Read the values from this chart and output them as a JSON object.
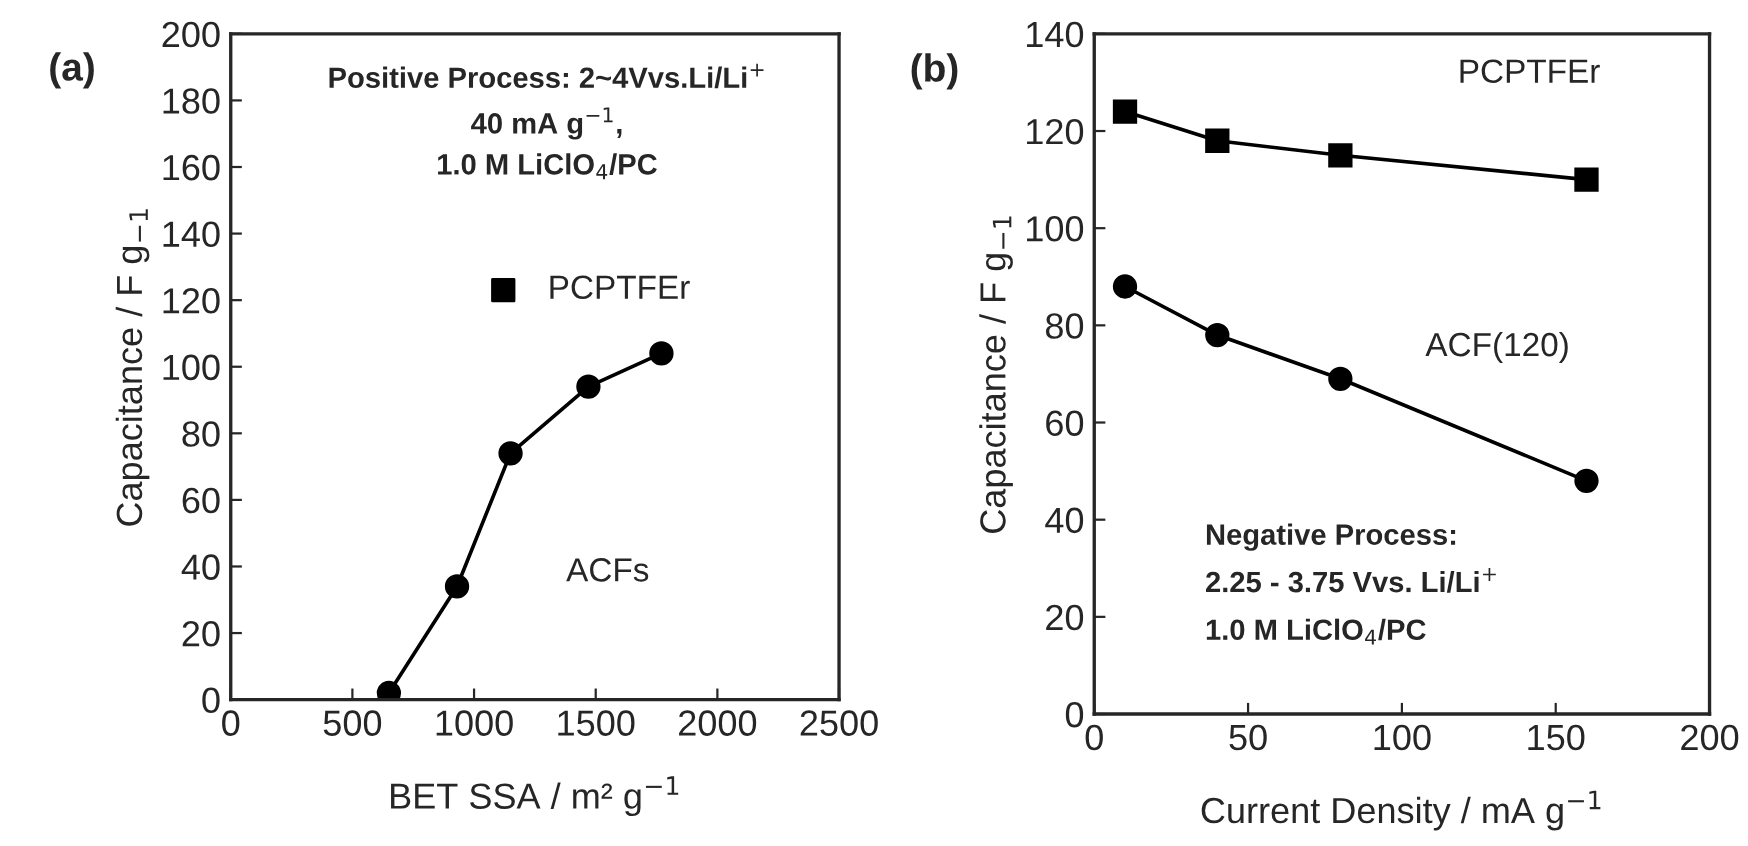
{
  "chart_data": [
    {
      "type": "line",
      "title": "(a)",
      "xlabel": "BET SSA / m² g$^{−1}$",
      "ylabel": "Capacitance / F g$_{−1}$",
      "xlim": [
        0,
        2500
      ],
      "ylim": [
        0,
        200
      ],
      "xticks": [
        0,
        500,
        1000,
        1500,
        2000,
        2500
      ],
      "yticks": [
        0,
        20,
        40,
        60,
        80,
        100,
        120,
        140,
        160,
        180,
        200
      ],
      "grid": false,
      "legend": false,
      "annotations": [
        "Positive Process: 2~4Vvs.Li/Li$^{+}$",
        "40 mA g$^{−1}$,",
        "1.0 M LiClO$_{4}$/PC"
      ],
      "series": [
        {
          "name": "PCPTFEr",
          "type": "scatter",
          "marker": "square",
          "color": "#000000",
          "x": [
            1120
          ],
          "values": [
            123
          ]
        },
        {
          "name": "ACFs",
          "marker": "circle",
          "color": "#000000",
          "x": [
            650,
            930,
            1150,
            1470,
            1770
          ],
          "values": [
            2,
            34,
            74,
            94,
            104
          ]
        }
      ]
    },
    {
      "type": "line",
      "title": "(b)",
      "xlabel": "Current Density / mA g$^{−1}$",
      "ylabel": "Capacitance / F g$_{−1}$",
      "xlim": [
        0,
        200
      ],
      "ylim": [
        0,
        140
      ],
      "xticks": [
        0,
        50,
        100,
        150,
        200
      ],
      "yticks": [
        0,
        20,
        40,
        60,
        80,
        100,
        120,
        140
      ],
      "grid": false,
      "legend": false,
      "annotations": [
        "Negative Process:",
        "2.25 - 3.75 Vvs. Li/Li$^{+}$",
        "1.0 M LiClO$_{4}$/PC"
      ],
      "series": [
        {
          "name": "PCPTFEr",
          "marker": "square",
          "color": "#000000",
          "x": [
            10,
            40,
            80,
            160
          ],
          "values": [
            124,
            118,
            115,
            110
          ]
        },
        {
          "name": "ACF(120)",
          "marker": "circle",
          "color": "#000000",
          "x": [
            10,
            40,
            80,
            160
          ],
          "values": [
            88,
            78,
            69,
            48
          ]
        }
      ]
    }
  ]
}
